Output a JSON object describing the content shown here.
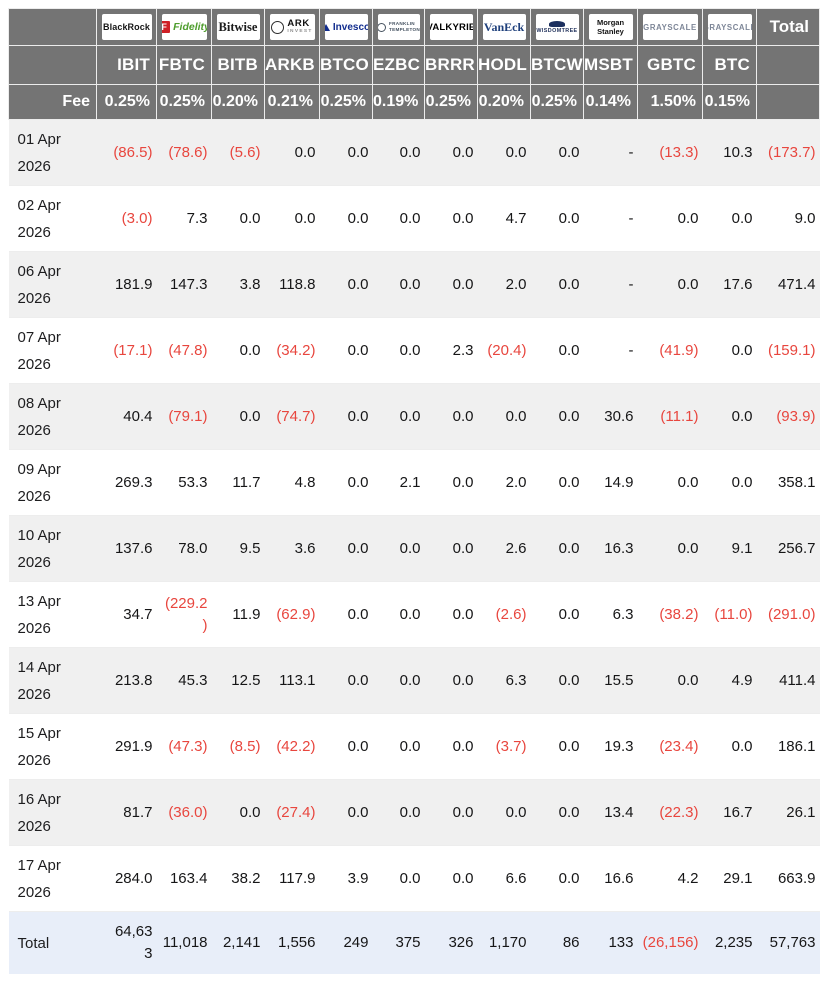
{
  "table": {
    "fee_label": "Fee",
    "total_label": "Total",
    "colors": {
      "header_bg": "#747474",
      "negative": "#e8463e",
      "stripe": "#f0f0f0",
      "total_row_bg": "#e8eef9"
    },
    "columns": [
      {
        "id": "ibit",
        "issuer": "BlackRock",
        "logo_kind": "blackrock",
        "logo_text": "BlackRock",
        "ticker": "IBIT",
        "fee": "0.25%"
      },
      {
        "id": "fbtc",
        "issuer": "Fidelity",
        "logo_kind": "fidelity",
        "logo_mark": "F",
        "logo_text": "Fidelity",
        "ticker": "FBTC",
        "fee": "0.25%"
      },
      {
        "id": "bitb",
        "issuer": "Bitwise",
        "logo_kind": "bitwise",
        "logo_text": "Bitwise",
        "ticker": "BITB",
        "fee": "0.20%"
      },
      {
        "id": "arkb",
        "issuer": "ARK Invest",
        "logo_kind": "ark",
        "logo_text_top": "ARK",
        "logo_text_bottom": "INVEST",
        "ticker": "ARKB",
        "fee": "0.21%"
      },
      {
        "id": "btco",
        "issuer": "Invesco",
        "logo_kind": "invesco",
        "logo_text": "Invesco",
        "ticker": "BTCO",
        "fee": "0.25%"
      },
      {
        "id": "ezbc",
        "issuer": "Franklin Templeton",
        "logo_kind": "franklin",
        "logo_text_top": "FRANKLIN",
        "logo_text_bottom": "TEMPLETON",
        "ticker": "EZBC",
        "fee": "0.19%"
      },
      {
        "id": "brrr",
        "issuer": "Valkyrie",
        "logo_kind": "valkyrie",
        "logo_text": "VALKYRIE",
        "ticker": "BRRR",
        "fee": "0.25%"
      },
      {
        "id": "hodl",
        "issuer": "VanEck",
        "logo_kind": "vaneck",
        "logo_text": "VanEck",
        "ticker": "HODL",
        "fee": "0.20%"
      },
      {
        "id": "btcw",
        "issuer": "WisdomTree",
        "logo_kind": "wisdomtree",
        "logo_text": "WISDOMTREE",
        "ticker": "BTCW",
        "fee": "0.25%"
      },
      {
        "id": "msbt",
        "issuer": "Morgan Stanley",
        "logo_kind": "morganstanley",
        "logo_text": "Morgan Stanley",
        "ticker": "MSBT",
        "fee": "0.14%"
      },
      {
        "id": "gbtc",
        "issuer": "Grayscale",
        "logo_kind": "grayscale",
        "logo_text": "GRAYSCALE",
        "ticker": "GBTC",
        "fee": "1.50%"
      },
      {
        "id": "btc",
        "issuer": "Grayscale",
        "logo_kind": "grayscale",
        "logo_text": "GRAYSCALE",
        "ticker": "BTC",
        "fee": "0.15%"
      }
    ],
    "rows": [
      {
        "label": "01 Apr 2026",
        "values": [
          "(86.5)",
          "(78.6)",
          "(5.6)",
          "0.0",
          "0.0",
          "0.0",
          "0.0",
          "0.0",
          "0.0",
          "-",
          "(13.3)",
          "10.3"
        ],
        "total": "(173.7)"
      },
      {
        "label": "02 Apr 2026",
        "values": [
          "(3.0)",
          "7.3",
          "0.0",
          "0.0",
          "0.0",
          "0.0",
          "0.0",
          "4.7",
          "0.0",
          "-",
          "0.0",
          "0.0"
        ],
        "total": "9.0"
      },
      {
        "label": "06 Apr 2026",
        "values": [
          "181.9",
          "147.3",
          "3.8",
          "118.8",
          "0.0",
          "0.0",
          "0.0",
          "2.0",
          "0.0",
          "-",
          "0.0",
          "17.6"
        ],
        "total": "471.4"
      },
      {
        "label": "07 Apr 2026",
        "values": [
          "(17.1)",
          "(47.8)",
          "0.0",
          "(34.2)",
          "0.0",
          "0.0",
          "2.3",
          "(20.4)",
          "0.0",
          "-",
          "(41.9)",
          "0.0"
        ],
        "total": "(159.1)"
      },
      {
        "label": "08 Apr 2026",
        "values": [
          "40.4",
          "(79.1)",
          "0.0",
          "(74.7)",
          "0.0",
          "0.0",
          "0.0",
          "0.0",
          "0.0",
          "30.6",
          "(11.1)",
          "0.0"
        ],
        "total": "(93.9)"
      },
      {
        "label": "09 Apr 2026",
        "values": [
          "269.3",
          "53.3",
          "11.7",
          "4.8",
          "0.0",
          "2.1",
          "0.0",
          "2.0",
          "0.0",
          "14.9",
          "0.0",
          "0.0"
        ],
        "total": "358.1"
      },
      {
        "label": "10 Apr 2026",
        "values": [
          "137.6",
          "78.0",
          "9.5",
          "3.6",
          "0.0",
          "0.0",
          "0.0",
          "2.6",
          "0.0",
          "16.3",
          "0.0",
          "9.1"
        ],
        "total": "256.7"
      },
      {
        "label": "13 Apr 2026",
        "values": [
          "34.7",
          "(229.2)",
          "11.9",
          "(62.9)",
          "0.0",
          "0.0",
          "0.0",
          "(2.6)",
          "0.0",
          "6.3",
          "(38.2)",
          "(11.0)"
        ],
        "total": "(291.0)"
      },
      {
        "label": "14 Apr 2026",
        "values": [
          "213.8",
          "45.3",
          "12.5",
          "113.1",
          "0.0",
          "0.0",
          "0.0",
          "6.3",
          "0.0",
          "15.5",
          "0.0",
          "4.9"
        ],
        "total": "411.4"
      },
      {
        "label": "15 Apr 2026",
        "values": [
          "291.9",
          "(47.3)",
          "(8.5)",
          "(42.2)",
          "0.0",
          "0.0",
          "0.0",
          "(3.7)",
          "0.0",
          "19.3",
          "(23.4)",
          "0.0"
        ],
        "total": "186.1"
      },
      {
        "label": "16 Apr 2026",
        "values": [
          "81.7",
          "(36.0)",
          "0.0",
          "(27.4)",
          "0.0",
          "0.0",
          "0.0",
          "0.0",
          "0.0",
          "13.4",
          "(22.3)",
          "16.7"
        ],
        "total": "26.1"
      },
      {
        "label": "17 Apr 2026",
        "values": [
          "284.0",
          "163.4",
          "38.2",
          "117.9",
          "3.9",
          "0.0",
          "0.0",
          "6.6",
          "0.0",
          "16.6",
          "4.2",
          "29.1"
        ],
        "total": "663.9"
      },
      {
        "label": "Total",
        "is_total": true,
        "values": [
          "64,633",
          "11,018",
          "2,141",
          "1,556",
          "249",
          "375",
          "326",
          "1,170",
          "86",
          "133",
          "(26,156)",
          "2,235"
        ],
        "total": "57,763"
      }
    ]
  }
}
